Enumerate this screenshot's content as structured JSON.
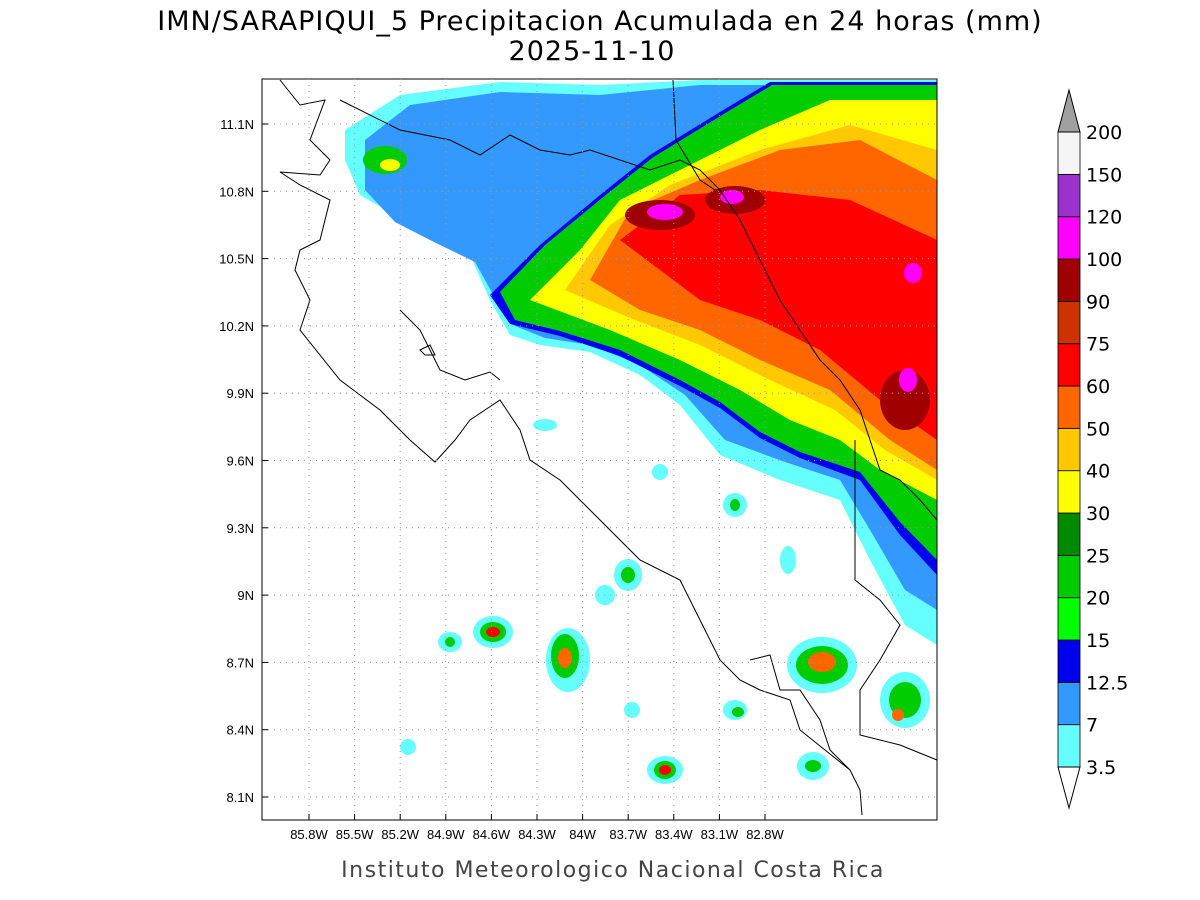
{
  "title": "IMN/SARAPIQUI_5 Precipitacion Acumulada en 24 horas (mm)",
  "subtitle": "2025-11-10",
  "x_axis": {
    "ticks": [
      "85.8W",
      "85.5W",
      "85.2W",
      "84.9W",
      "84.6W",
      "84.3W",
      "84W",
      "83.7W",
      "83.4W",
      "83.1W",
      "82.8W"
    ]
  },
  "y_axis": {
    "ticks": [
      "11.1N",
      "10.8N",
      "10.5N",
      "10.2N",
      "9.9N",
      "9.6N",
      "9.3N",
      "9N",
      "8.7N",
      "8.4N",
      "8.1N"
    ]
  },
  "grid": true,
  "colorbar": {
    "levels": [
      3.5,
      7,
      12.5,
      15,
      20,
      25,
      30,
      40,
      50,
      60,
      75,
      90,
      100,
      120,
      150,
      200
    ],
    "colors": [
      "#66ffff",
      "#3399ff",
      "#0000ee",
      "#00ff00",
      "#00cc00",
      "#008a00",
      "#ffff00",
      "#ffc800",
      "#ff6600",
      "#ff0000",
      "#cc3300",
      "#a00000",
      "#ff00ff",
      "#9933cc",
      "#f5f5f5"
    ],
    "under_color": "#ffffff",
    "over_color": "#a0a0a0"
  },
  "footer": "Instituto Meteorologico Nacional Costa Rica"
}
